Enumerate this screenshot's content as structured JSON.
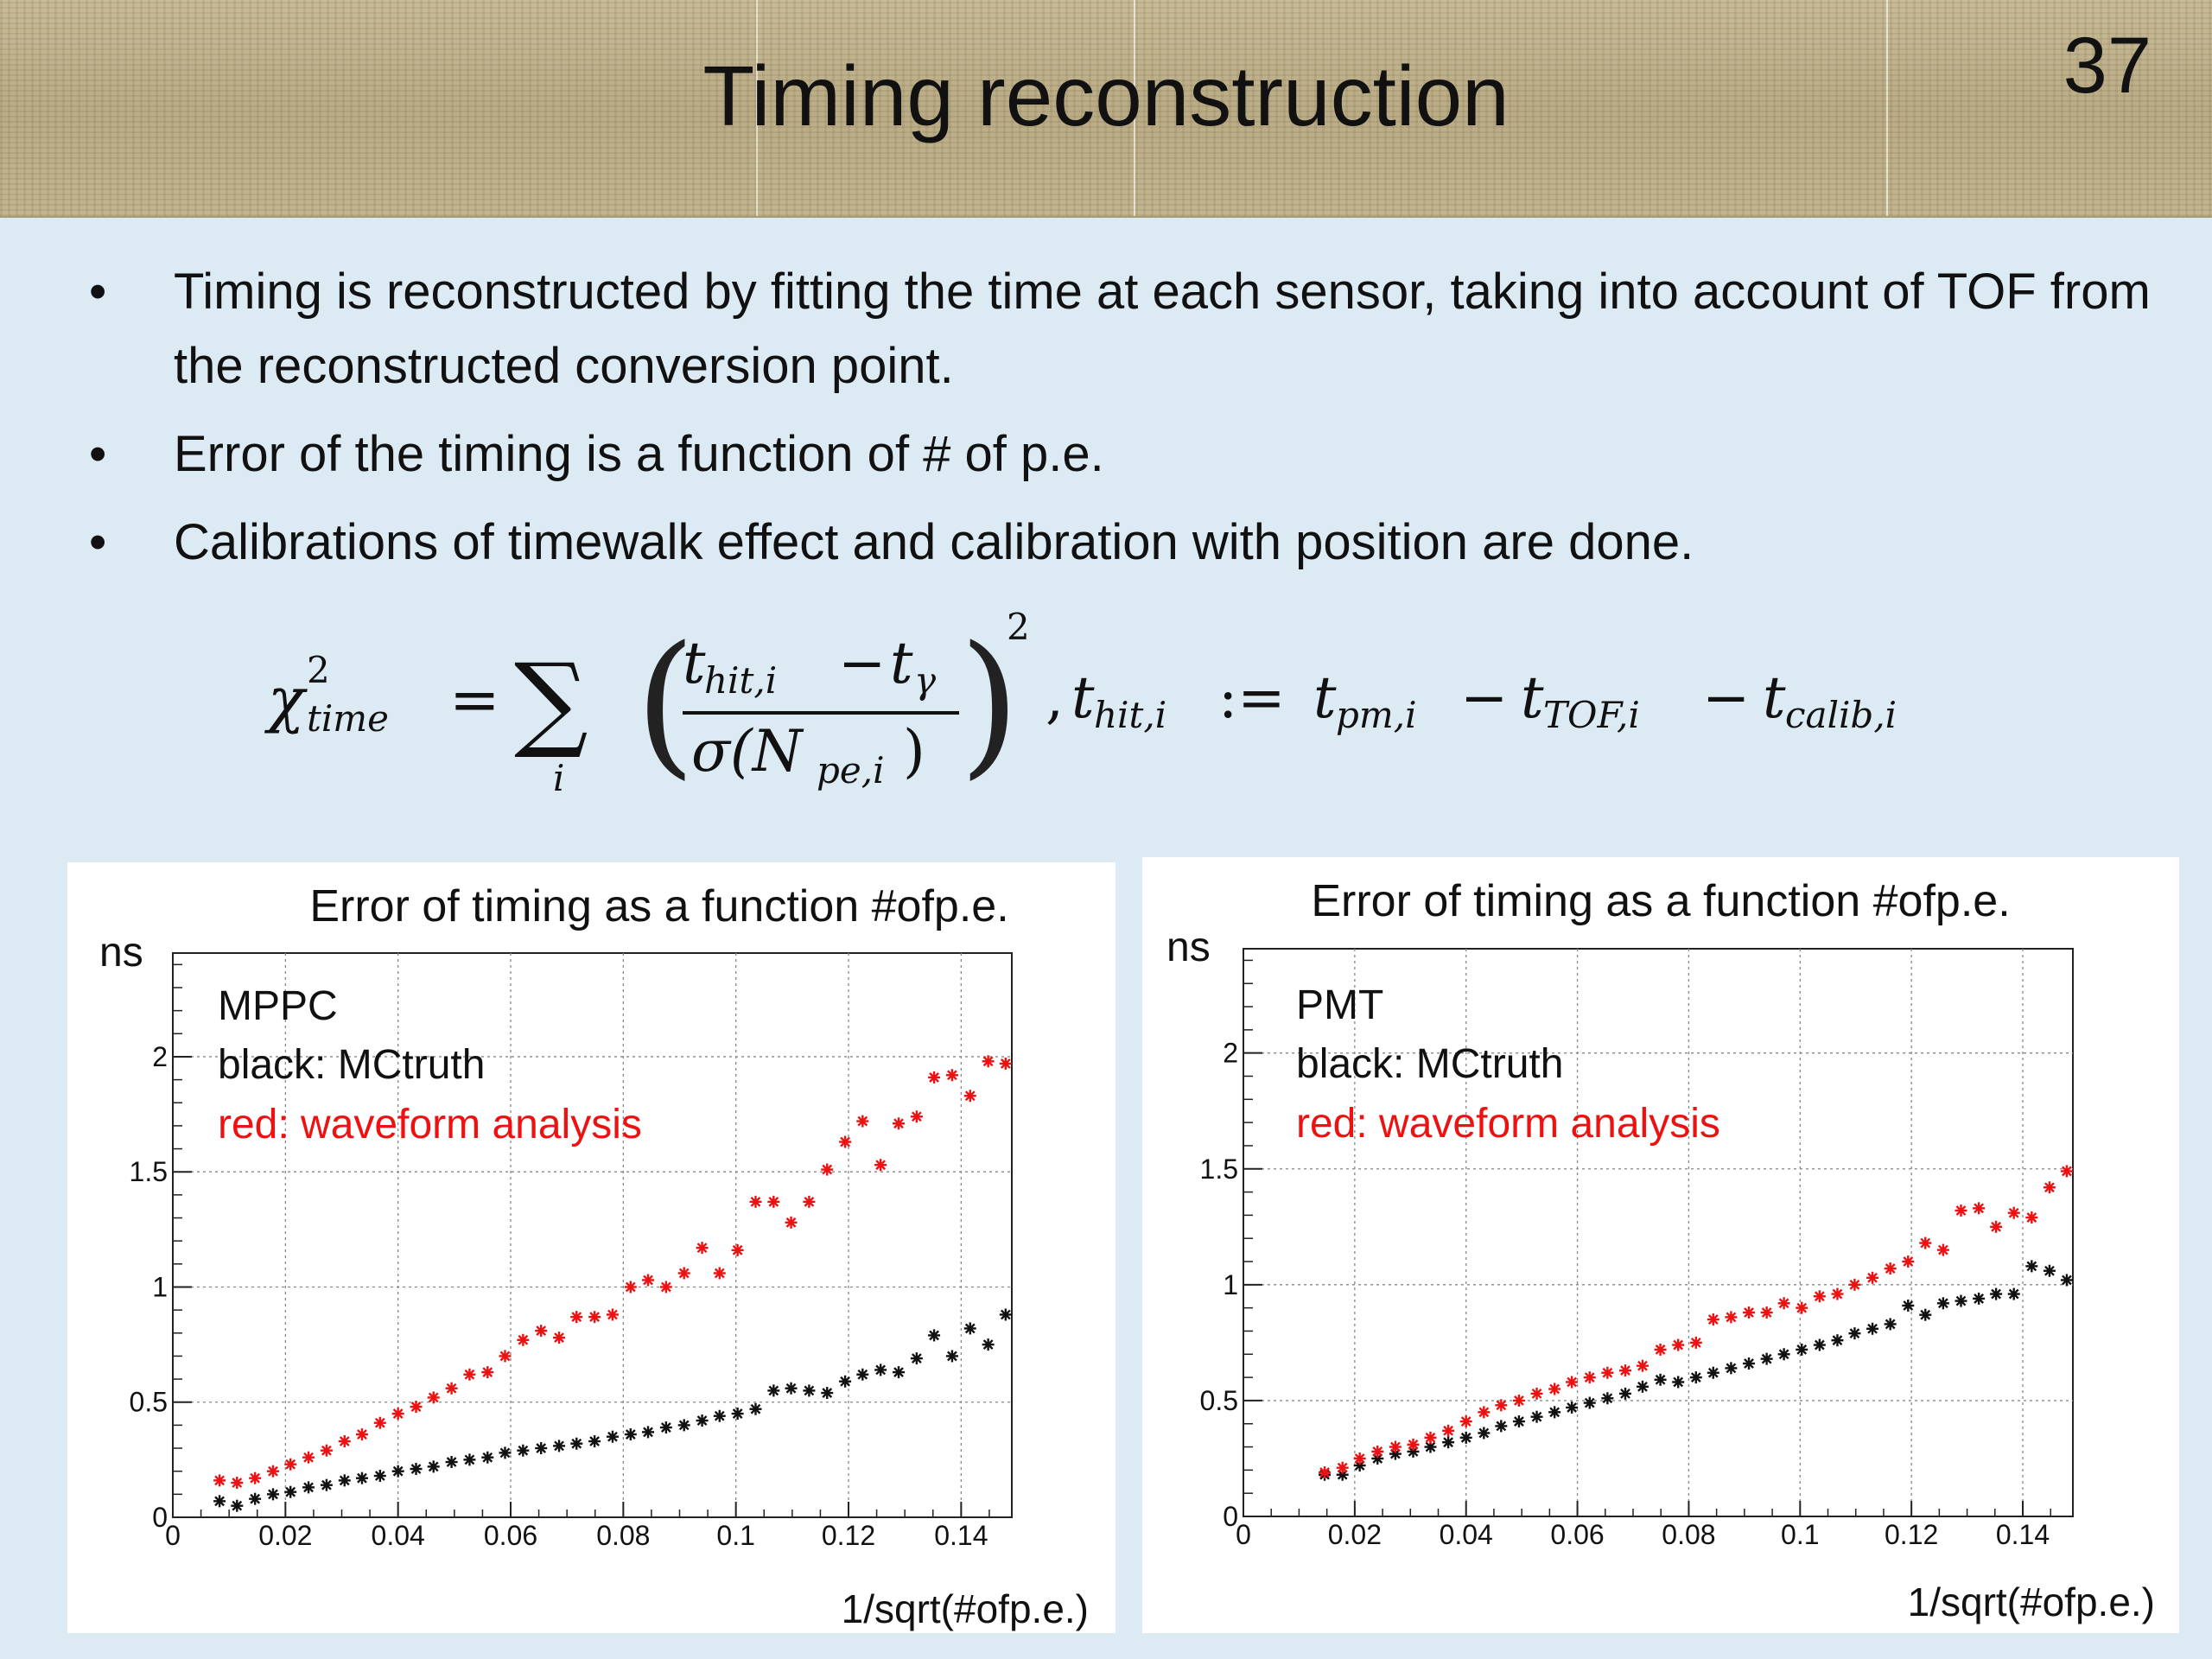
{
  "slide": {
    "title": "Timing reconstruction",
    "page_number": "37",
    "bullets": [
      "Timing is reconstructed by fitting the time at each sensor, taking into account of TOF from the reconstructed conversion point.",
      "Error of the timing is a function of # of p.e.",
      "Calibrations of  timewalk effect and calibration with position are done."
    ]
  },
  "formula": {
    "chi": "χ",
    "sup2": "2",
    "time": "time",
    "eq": "=",
    "sum": "∑",
    "i": "i",
    "numerator": "t",
    "numerator_sub": "hit,i",
    "minus": "−",
    "t_gamma": "t",
    "gamma": "γ",
    "denominator": "σ(N",
    "denominator_sub": "pe,i",
    "denominator_close": ")",
    "outer_sup": "2",
    "comma": ",",
    "lhs_t": "t",
    "lhs_sub": "hit,i",
    "defeq": ":=",
    "t_pm": "t",
    "pm_sub": "pm,i",
    "minus2": "−",
    "t_tof": "t",
    "tof_sub": "TOF,i",
    "minus3": "−",
    "t_calib": "t",
    "calib_sub": "calib,i"
  },
  "colors": {
    "black_series": "#111111",
    "red_series": "#ee1111",
    "panel_bg": "#ffffff",
    "slide_bg": "#dbeaf3"
  },
  "chart_data": [
    {
      "type": "scatter",
      "title": "Error of timing as a function #ofp.e.",
      "ylabel": "ns",
      "xlabel": "1/sqrt(#ofp.e.)",
      "xlim": [
        0,
        0.149
      ],
      "ylim": [
        0,
        2.45
      ],
      "xticks": [
        "0",
        "0.02",
        "0.04",
        "0.06",
        "0.08",
        "0.1",
        "0.12",
        "0.14"
      ],
      "yticks": [
        "0",
        "0.5",
        "1",
        "1.5",
        "2"
      ],
      "grid": true,
      "annotations": [
        "MPPC",
        "black: MCtruth",
        "red: waveform analysis"
      ],
      "series": [
        {
          "color": "#111111",
          "x": [
            0.0083,
            0.0114,
            0.0146,
            0.0178,
            0.0209,
            0.0241,
            0.0273,
            0.0305,
            0.0336,
            0.0368,
            0.04,
            0.0432,
            0.0463,
            0.0495,
            0.0527,
            0.0559,
            0.059,
            0.0622,
            0.0654,
            0.0686,
            0.0717,
            0.0749,
            0.0781,
            0.0813,
            0.0844,
            0.0876,
            0.0908,
            0.094,
            0.0971,
            0.1003,
            0.1035,
            0.1067,
            0.1098,
            0.113,
            0.1162,
            0.1194,
            0.1225,
            0.1257,
            0.1289,
            0.1321,
            0.1352,
            0.1384,
            0.1416,
            0.1448,
            0.1479
          ],
          "y": [
            0.07,
            0.05,
            0.08,
            0.1,
            0.11,
            0.13,
            0.14,
            0.16,
            0.17,
            0.18,
            0.2,
            0.21,
            0.22,
            0.24,
            0.25,
            0.26,
            0.28,
            0.29,
            0.3,
            0.31,
            0.32,
            0.33,
            0.35,
            0.36,
            0.37,
            0.39,
            0.4,
            0.42,
            0.44,
            0.45,
            0.47,
            0.55,
            0.56,
            0.55,
            0.54,
            0.59,
            0.62,
            0.64,
            0.63,
            0.69,
            0.79,
            0.7,
            0.82,
            0.75,
            0.88
          ]
        },
        {
          "color": "#ee1111",
          "x": [
            0.0083,
            0.0114,
            0.0146,
            0.0178,
            0.0209,
            0.0241,
            0.0273,
            0.0305,
            0.0336,
            0.0368,
            0.04,
            0.0432,
            0.0463,
            0.0495,
            0.0527,
            0.0559,
            0.059,
            0.0622,
            0.0654,
            0.0686,
            0.0717,
            0.0749,
            0.0781,
            0.0813,
            0.0844,
            0.0876,
            0.0908,
            0.094,
            0.0971,
            0.1003,
            0.1035,
            0.1067,
            0.1098,
            0.113,
            0.1162,
            0.1194,
            0.1225,
            0.1257,
            0.1289,
            0.1321,
            0.1352,
            0.1384,
            0.1416,
            0.1448,
            0.1479
          ],
          "y": [
            0.16,
            0.15,
            0.17,
            0.2,
            0.23,
            0.26,
            0.29,
            0.33,
            0.36,
            0.41,
            0.45,
            0.48,
            0.52,
            0.56,
            0.62,
            0.63,
            0.7,
            0.77,
            0.81,
            0.78,
            0.87,
            0.87,
            0.88,
            1.0,
            1.03,
            1.0,
            1.06,
            1.17,
            1.06,
            1.16,
            1.37,
            1.37,
            1.28,
            1.37,
            1.51,
            1.63,
            1.72,
            1.53,
            1.71,
            1.74,
            1.91,
            1.92,
            1.83,
            1.98,
            1.97
          ]
        }
      ]
    },
    {
      "type": "scatter",
      "title": "Error of timing as a function #ofp.e.",
      "ylabel": "ns",
      "xlabel": "1/sqrt(#ofp.e.)",
      "xlim": [
        0,
        0.149
      ],
      "ylim": [
        0,
        2.45
      ],
      "xticks": [
        "0",
        "0.02",
        "0.04",
        "0.06",
        "0.08",
        "0.1",
        "0.12",
        "0.14"
      ],
      "yticks": [
        "0",
        "0.5",
        "1",
        "1.5",
        "2"
      ],
      "grid": true,
      "annotations": [
        "PMT",
        "black: MCtruth",
        "red: waveform analysis"
      ],
      "series": [
        {
          "color": "#111111",
          "x": [
            0.0146,
            0.0178,
            0.0209,
            0.0241,
            0.0273,
            0.0305,
            0.0336,
            0.0368,
            0.04,
            0.0432,
            0.0463,
            0.0495,
            0.0527,
            0.0559,
            0.059,
            0.0622,
            0.0654,
            0.0686,
            0.0717,
            0.0749,
            0.0781,
            0.0813,
            0.0844,
            0.0876,
            0.0908,
            0.094,
            0.0971,
            0.1003,
            0.1035,
            0.1067,
            0.1098,
            0.113,
            0.1162,
            0.1194,
            0.1225,
            0.1257,
            0.1289,
            0.1321,
            0.1352,
            0.1384,
            0.1416,
            0.1448,
            0.1479
          ],
          "y": [
            0.18,
            0.18,
            0.22,
            0.25,
            0.27,
            0.28,
            0.3,
            0.32,
            0.34,
            0.36,
            0.39,
            0.41,
            0.43,
            0.45,
            0.47,
            0.49,
            0.51,
            0.53,
            0.56,
            0.59,
            0.58,
            0.6,
            0.62,
            0.64,
            0.66,
            0.68,
            0.7,
            0.72,
            0.74,
            0.76,
            0.79,
            0.81,
            0.83,
            0.91,
            0.87,
            0.92,
            0.93,
            0.94,
            0.96,
            0.96,
            1.08,
            1.06,
            1.02
          ]
        },
        {
          "color": "#ee1111",
          "x": [
            0.0146,
            0.0178,
            0.0209,
            0.0241,
            0.0273,
            0.0305,
            0.0336,
            0.0368,
            0.04,
            0.0432,
            0.0463,
            0.0495,
            0.0527,
            0.0559,
            0.059,
            0.0622,
            0.0654,
            0.0686,
            0.0717,
            0.0749,
            0.0781,
            0.0813,
            0.0844,
            0.0876,
            0.0908,
            0.094,
            0.0971,
            0.1003,
            0.1035,
            0.1067,
            0.1098,
            0.113,
            0.1162,
            0.1194,
            0.1225,
            0.1257,
            0.1289,
            0.1321,
            0.1352,
            0.1384,
            0.1416,
            0.1448,
            0.1479
          ],
          "y": [
            0.19,
            0.21,
            0.25,
            0.28,
            0.3,
            0.31,
            0.34,
            0.37,
            0.41,
            0.45,
            0.48,
            0.5,
            0.53,
            0.55,
            0.58,
            0.6,
            0.62,
            0.63,
            0.65,
            0.72,
            0.74,
            0.75,
            0.85,
            0.86,
            0.88,
            0.88,
            0.92,
            0.9,
            0.95,
            0.96,
            1.0,
            1.03,
            1.07,
            1.1,
            1.18,
            1.15,
            1.32,
            1.33,
            1.25,
            1.31,
            1.29,
            1.42,
            1.49
          ]
        }
      ]
    }
  ]
}
